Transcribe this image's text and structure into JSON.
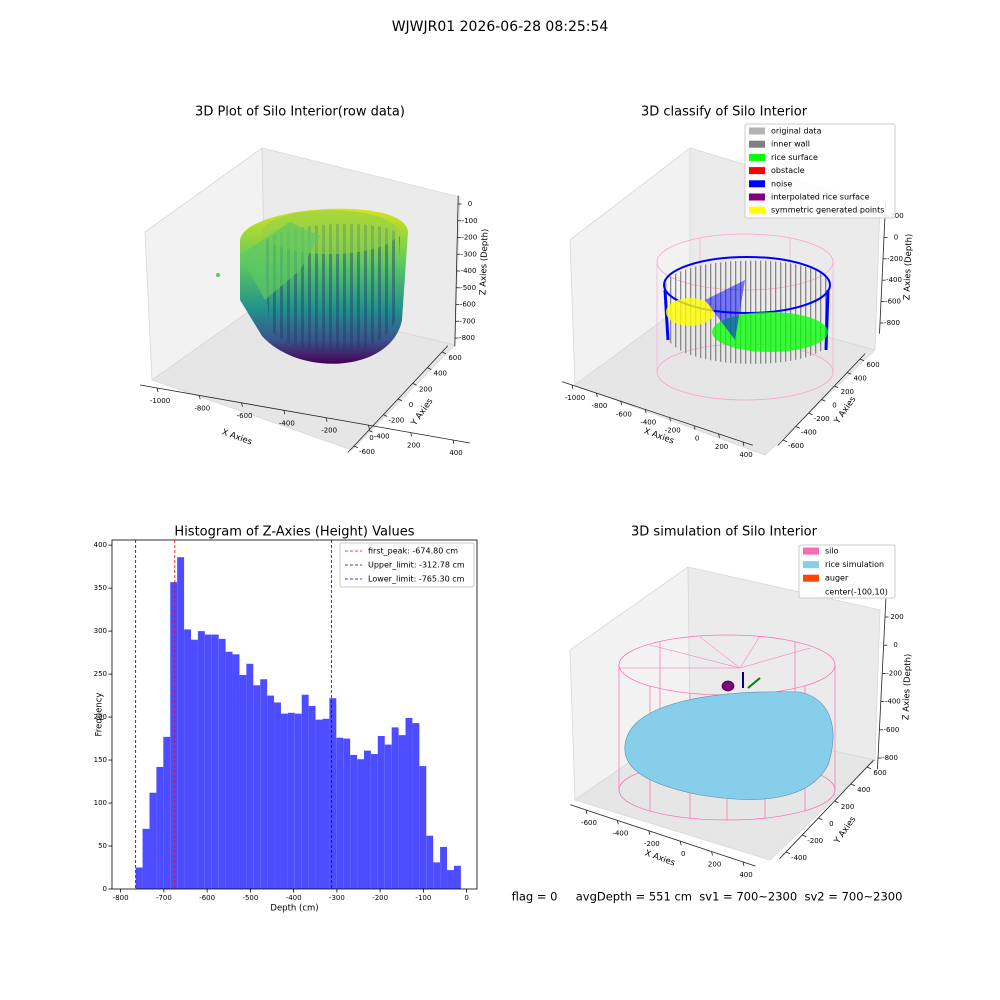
{
  "title": "WJWJR01 2026-06-28 08:25:54",
  "footer": "flag = 0     avgDepth = 551 cm  sv1 = 700~2300  sv2 = 700~2300",
  "chart_data": [
    {
      "type": "scatter3d",
      "title": "3D Plot of Silo Interior(row data)",
      "xlabel": "X Axies",
      "ylabel": "Y Axies",
      "zlabel": "Z Axies (Depth)",
      "xlim": [
        -1080,
        480
      ],
      "xticks": [
        -1000,
        -800,
        -600,
        -400,
        -200,
        0,
        200,
        400
      ],
      "ylim": [
        -680,
        680
      ],
      "yticks": [
        -600,
        -400,
        -200,
        0,
        200,
        400,
        600
      ],
      "zlim": [
        -850,
        50
      ],
      "zticks": [
        -800,
        -700,
        -600,
        -500,
        -400,
        -300,
        -200,
        -100,
        0
      ]
    },
    {
      "type": "scatter3d",
      "title": "3D classify of Silo Interior",
      "xlabel": "X Axies",
      "ylabel": "Y Axies",
      "zlabel": "Z Axies (Depth)",
      "xlim": [
        -1080,
        480
      ],
      "xticks": [
        -1000,
        -800,
        -600,
        -400,
        -200,
        0,
        200,
        400
      ],
      "ylim": [
        -680,
        680
      ],
      "yticks": [
        -600,
        -400,
        -200,
        0,
        200,
        400,
        600
      ],
      "zlim": [
        -900,
        330
      ],
      "zticks": [
        -800,
        -600,
        -400,
        -200,
        0,
        200
      ],
      "legend": [
        {
          "name": "original data",
          "color": "#b3b3b3"
        },
        {
          "name": "inner wall",
          "color": "#808080"
        },
        {
          "name": "rice surface",
          "color": "#00ff00"
        },
        {
          "name": "obstacle",
          "color": "#ff0000"
        },
        {
          "name": "noise",
          "color": "#0000ff"
        },
        {
          "name": "interpolated rice surface",
          "color": "#800080"
        },
        {
          "name": "symmetric generated points",
          "color": "#ffff00"
        }
      ]
    },
    {
      "type": "histogram",
      "title": "Histogram of Z-Axies (Height) Values",
      "xlabel": "Depth (cm)",
      "ylabel": "Frequency",
      "color": "#4d4dff",
      "xlim": [
        -820,
        24
      ],
      "xticks": [
        -800,
        -700,
        -600,
        -500,
        -400,
        -300,
        -200,
        -100,
        0
      ],
      "ylim": [
        0,
        406
      ],
      "yticks": [
        0,
        50,
        100,
        150,
        200,
        250,
        300,
        350,
        400
      ],
      "bins": [
        -765.3,
        -749.3,
        -733.3,
        -717.3,
        -701.3,
        -685.3,
        -669.3,
        -653.3,
        -637.3,
        -621.3,
        -605.3,
        -589.3,
        -573.3,
        -557.3,
        -541.3,
        -525.3,
        -509.3,
        -493.3,
        -477.3,
        -461.3,
        -445.3,
        -429.3,
        -413.3,
        -397.3,
        -381.3,
        -365.3,
        -349.3,
        -333.3,
        -317.3,
        -301.3,
        -285.3,
        -269.3,
        -253.3,
        -237.3,
        -221.3,
        -205.3,
        -189.3,
        -173.3,
        -157.3,
        -141.3,
        -125.3,
        -109.3,
        -93.3,
        -77.3,
        -61.3,
        -45.3,
        -29.3,
        -13.3
      ],
      "values": [
        25,
        70,
        112,
        142,
        177,
        357,
        386,
        302,
        290,
        300,
        296,
        296,
        291,
        276,
        273,
        249,
        262,
        237,
        244,
        225,
        217,
        204,
        205,
        204,
        226,
        213,
        197,
        198,
        222,
        176,
        175,
        156,
        151,
        161,
        157,
        178,
        168,
        188,
        179,
        199,
        193,
        143,
        62,
        31,
        49,
        22,
        27
      ],
      "vlines": [
        {
          "value": -674.8,
          "label": "first_peak: -674.80 cm",
          "color": "#ff0000"
        },
        {
          "value": -312.78,
          "label": "Upper_limit: -312.78 cm",
          "color": "#0000cc"
        },
        {
          "value": -765.3,
          "label": "Lower_limit: -765.30 cm",
          "color": "#0000cc"
        }
      ]
    },
    {
      "type": "scatter3d",
      "title": "3D simulation of Silo Interior",
      "xlabel": "X Axies",
      "ylabel": "Y Axies",
      "zlabel": "Z Axies (Depth)",
      "xlim": [
        -700,
        480
      ],
      "xticks": [
        -600,
        -400,
        -200,
        0,
        200,
        400
      ],
      "ylim": [
        -480,
        680
      ],
      "yticks": [
        -400,
        -200,
        0,
        200,
        400,
        600
      ],
      "zlim": [
        -880,
        330
      ],
      "zticks": [
        -800,
        -600,
        -400,
        -200,
        0,
        200
      ],
      "legend": [
        {
          "name": "silo",
          "color": "#ff69b4"
        },
        {
          "name": "rice simulation",
          "color": "#87ceeb"
        },
        {
          "name": "auger",
          "color": "#ff4500"
        },
        {
          "name": "center(-100,10)"
        }
      ]
    }
  ]
}
